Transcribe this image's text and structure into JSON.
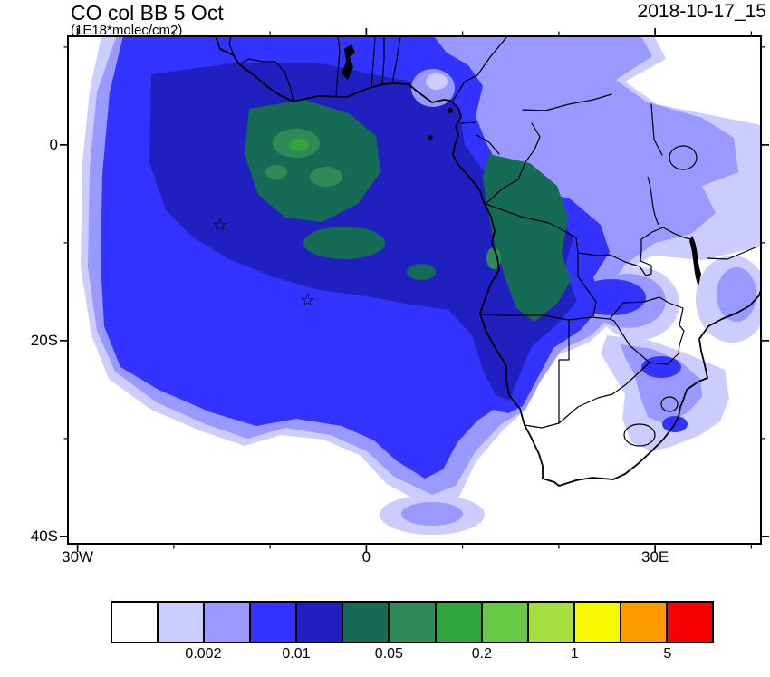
{
  "header": {
    "title": "CO col BB 5 Oct",
    "subtitle": "(1E18*molec/cm2)",
    "datetime": "2018-10-17_15"
  },
  "axes": {
    "x_ticks": [
      {
        "label": "30W",
        "lon": -30
      },
      {
        "label": "0",
        "lon": 0
      },
      {
        "label": "30E",
        "lon": 30
      }
    ],
    "y_ticks": [
      {
        "label": "0",
        "lat": 0
      },
      {
        "label": "20S",
        "lat": -20
      },
      {
        "label": "40S",
        "lat": -40
      }
    ],
    "x_minor": [
      -20,
      -10,
      10,
      20,
      40
    ],
    "y_minor": [
      10,
      -10,
      -30
    ]
  },
  "colorbar": {
    "colors": [
      "#ffffff",
      "#ccccff",
      "#9999ff",
      "#3333ff",
      "#2020c0",
      "#156b54",
      "#2e8b57",
      "#2fa53c",
      "#66c943",
      "#a5de3e",
      "#f8f800",
      "#fb9b00",
      "#f80000"
    ],
    "boundary_labels": [
      "0.002",
      "0.01",
      "0.05",
      "0.2",
      "1",
      "5"
    ],
    "labeled_boundary_indices": [
      2,
      4,
      6,
      8,
      10,
      12
    ],
    "all_levels": [
      0.001,
      0.002,
      0.005,
      0.01,
      0.02,
      0.05,
      0.1,
      0.2,
      0.5,
      1,
      2,
      5
    ]
  },
  "chart_data": {
    "type": "heatmap",
    "subtype": "filled-contour-geographic-map",
    "title": "CO col BB 5 Oct",
    "units": "1E18*molec/cm2",
    "datetime": "2018-10-17_15",
    "xticks": [
      "30W",
      "0",
      "30E"
    ],
    "yticks": [
      "0",
      "20S",
      "40S"
    ],
    "lon_range": [
      -31,
      41
    ],
    "lat_range": [
      -40.8,
      11.1
    ],
    "levels": [
      0.001,
      0.002,
      0.005,
      0.01,
      0.02,
      0.05,
      0.1,
      0.2,
      0.5,
      1,
      2,
      5
    ],
    "palette": [
      "#ffffff",
      "#ccccff",
      "#9999ff",
      "#3333ff",
      "#2020c0",
      "#156b54",
      "#2e8b57",
      "#2fa53c",
      "#66c943",
      "#a5de3e",
      "#f8f800",
      "#fb9b00",
      "#f80000"
    ],
    "colorbar_labels": [
      "0.002",
      "0.01",
      "0.05",
      "0.2",
      "1",
      "5"
    ],
    "legend_position": "bottom",
    "grid": false,
    "markers": [
      {
        "symbol": "star",
        "lon": -15.2,
        "lat": -8.2
      },
      {
        "symbol": "star",
        "lon": -6.1,
        "lat": -15.9
      }
    ],
    "map_features": [
      "coastlines",
      "country-borders",
      "lakes"
    ],
    "regions_read_from_plot": [
      {
        "region": "South Atlantic plume core off Angola/Congo and central Atlantic",
        "co_col_1e18": "0.02-0.1"
      },
      {
        "region": "Congo basin / central Africa (dark green patches)",
        "co_col_1e18": "0.05-0.2"
      },
      {
        "region": "small maxima patches near 10W-5W, 0-15S",
        "co_col_1e18": "0.1-0.5"
      },
      {
        "region": "broad blue plume over tropical Atlantic and southern Africa",
        "co_col_1e18": "0.01-0.02"
      },
      {
        "region": "outer lavender fringe (East Africa, SE band, SW ocean)",
        "co_col_1e18": "0.002-0.01"
      },
      {
        "region": "southern Africa interior, far SE ocean, NW corner",
        "co_col_1e18": "<0.002"
      }
    ]
  }
}
